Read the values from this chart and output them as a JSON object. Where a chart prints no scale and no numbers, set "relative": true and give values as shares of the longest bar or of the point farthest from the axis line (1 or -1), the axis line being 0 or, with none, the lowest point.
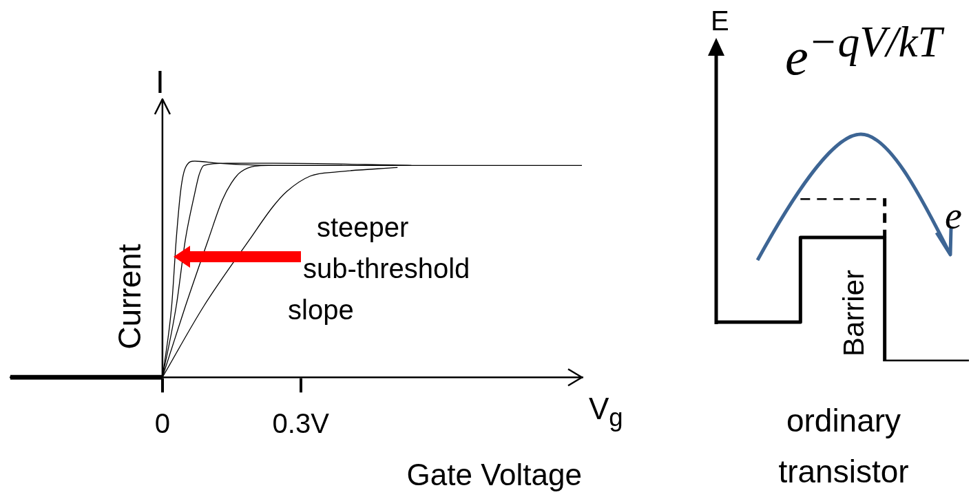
{
  "chart_data": [
    {
      "type": "line",
      "xlabel": "Gate Voltage",
      "ylabel": "Current",
      "relative": true,
      "marker": "none",
      "xlim": [
        -0.33,
        0.91
      ],
      "xticks": [
        0,
        {
          "value": 0.3,
          "label": "0.3V"
        }
      ],
      "series": [
        {
          "color": "#000000",
          "x": [
            -0.33,
            0
          ],
          "values": [
            0,
            0
          ]
        },
        {
          "color": "#000000",
          "x": [
            0,
            0.02,
            0.03,
            0.04,
            0.05,
            0.07,
            0.12,
            0.24,
            0.4,
            0.91
          ],
          "values": [
            0,
            0.33,
            0.64,
            0.87,
            0.97,
            1.0,
            0.99,
            0.98,
            0.98,
            0.98
          ]
        },
        {
          "color": "#000000",
          "x": [
            0,
            0.03,
            0.05,
            0.07,
            0.08,
            0.09,
            0.14,
            0.24,
            0.54
          ],
          "values": [
            0,
            0.33,
            0.64,
            0.85,
            0.94,
            0.98,
            0.99,
            0.99,
            0.98
          ]
        },
        {
          "color": "#000000",
          "x": [
            0,
            0.05,
            0.1,
            0.13,
            0.15,
            0.17,
            0.23,
            0.39
          ],
          "values": [
            0,
            0.33,
            0.64,
            0.82,
            0.9,
            0.95,
            0.98,
            0.98
          ]
        },
        {
          "color": "#000000",
          "x": [
            0,
            0.09,
            0.19,
            0.24,
            0.27,
            0.32,
            0.38,
            0.51
          ],
          "values": [
            0,
            0.33,
            0.64,
            0.79,
            0.86,
            0.93,
            0.95,
            0.97
          ]
        }
      ],
      "annotations": [
        "I",
        "V$_{g}$",
        "steeper sub-threshold slope"
      ]
    },
    {
      "type": "step",
      "ylabel": "E",
      "relative": true,
      "marker": "none",
      "categories": [
        null,
        null,
        null,
        null
      ],
      "series": [
        {
          "color": "#000000",
          "values": [
            0.24,
            0.76,
            0,
            0
          ]
        },
        {
          "color": "#000000",
          "line_style": "dashed",
          "values": [
            null,
            1.0,
            0.76,
            null
          ]
        }
      ],
      "annotations": [
        "e$^{−qV/kT}$",
        "Barrier",
        "ordinary transistor",
        "e"
      ]
    }
  ]
}
